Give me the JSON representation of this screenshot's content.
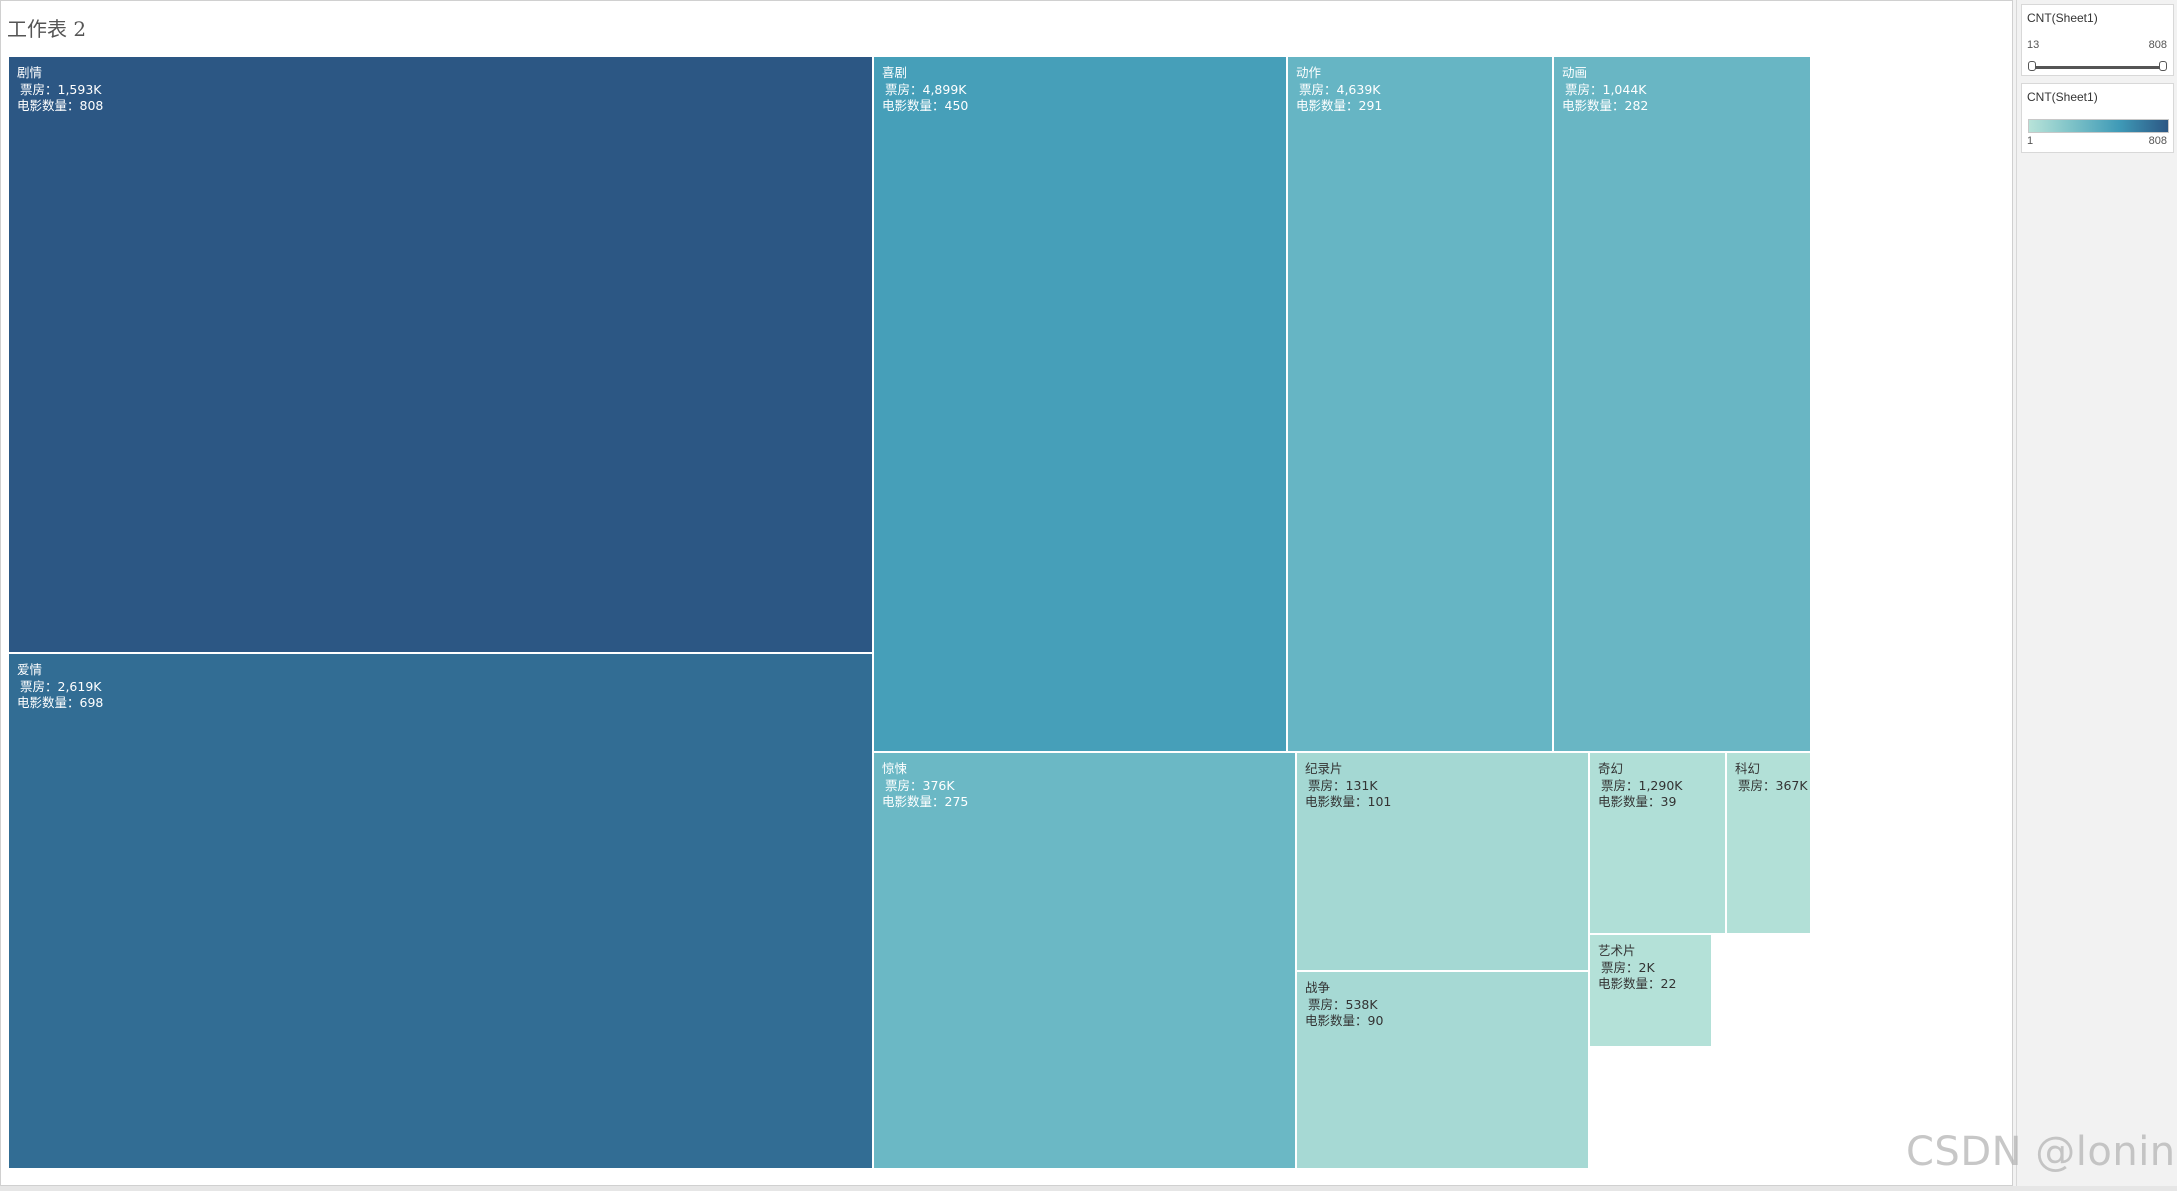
{
  "sheet": {
    "title": "工作表 2"
  },
  "colors": {
    "low": "#b8e3d9",
    "mid": "#3f9ab7",
    "high": "#2c5784"
  },
  "chart_data": {
    "type": "treemap",
    "size_measure": "电影数量",
    "color_measure": "CNT(Sheet1)",
    "box_office_label": "票房",
    "count_label": "电影数量",
    "items": [
      {
        "genre": "剧情",
        "box_office": "1,593K",
        "count": 808
      },
      {
        "genre": "爱情",
        "box_office": "2,619K",
        "count": 698
      },
      {
        "genre": "喜剧",
        "box_office": "4,899K",
        "count": 450
      },
      {
        "genre": "动作",
        "box_office": "4,639K",
        "count": 291
      },
      {
        "genre": "动画",
        "box_office": "1,044K",
        "count": 282
      },
      {
        "genre": "惊悚",
        "box_office": "376K",
        "count": 275
      },
      {
        "genre": "纪录片",
        "box_office": "131K",
        "count": 101
      },
      {
        "genre": "战争",
        "box_office": "538K",
        "count": 90
      },
      {
        "genre": "奇幻",
        "box_office": "1,290K",
        "count": 39
      },
      {
        "genre": "科幻",
        "box_office": "367K",
        "count": null
      },
      {
        "genre": "艺术片",
        "box_office": "2K",
        "count": 22
      }
    ]
  },
  "filter_card": {
    "title": "CNT(Sheet1)",
    "min_label": "13",
    "max_label": "808",
    "range": [
      13,
      808
    ]
  },
  "legend_card": {
    "title": "CNT(Sheet1)",
    "min_label": "1",
    "max_label": "808"
  },
  "watermark": "CSDN @lonine"
}
